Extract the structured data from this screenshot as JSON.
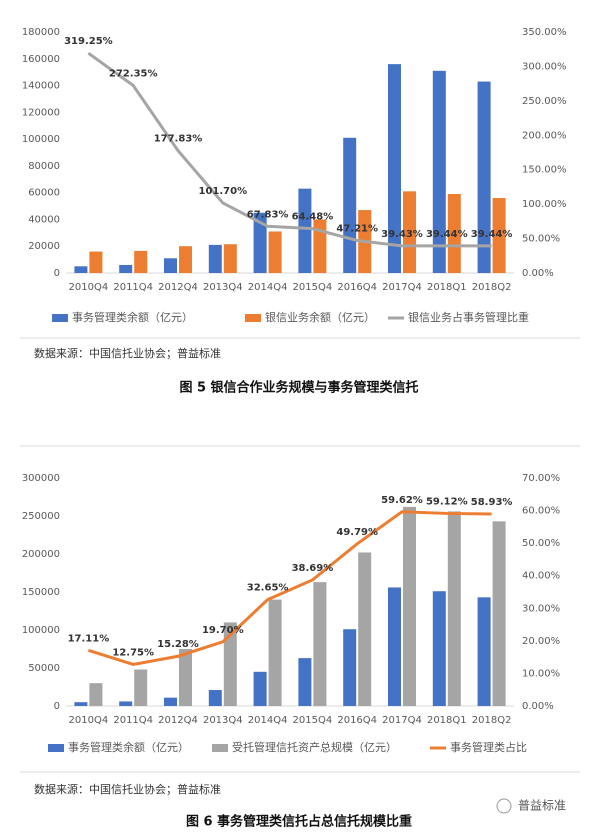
{
  "chart_data": [
    {
      "type": "bar-line",
      "categories": [
        "2010Q4",
        "2011Q4",
        "2012Q4",
        "2013Q4",
        "2014Q4",
        "2015Q4",
        "2016Q4",
        "2017Q4",
        "2018Q1",
        "2018Q2"
      ],
      "series": [
        {
          "name": "事务管理类余额（亿元）",
          "color": "#4472c4",
          "values": [
            5000,
            6000,
            11000,
            21000,
            45000,
            63000,
            101000,
            156000,
            151000,
            143000
          ]
        },
        {
          "name": "银信业务余额（亿元）",
          "color": "#ed7d31",
          "values": [
            16000,
            16500,
            20000,
            21500,
            31000,
            40000,
            47000,
            61000,
            59000,
            56000
          ]
        },
        {
          "name": "银信业务占事务管理比重",
          "color": "#a5a5a5",
          "axis": "y2",
          "values": [
            319.25,
            272.35,
            177.83,
            101.7,
            67.83,
            64.48,
            47.21,
            39.43,
            39.44,
            39.44
          ],
          "value_labels": [
            "319.25%",
            "272.35%",
            "177.83%",
            "101.70%",
            "67.83%",
            "64.48%",
            "47.21%",
            "39.43%",
            "39.44%",
            "39.44%"
          ]
        }
      ],
      "ylim": [
        0,
        180000
      ],
      "yticks": [
        0,
        20000,
        40000,
        60000,
        80000,
        100000,
        120000,
        140000,
        160000,
        180000
      ],
      "y2lim": [
        0,
        350
      ],
      "y2ticks": [
        {
          "value": 0,
          "label": "0.00%"
        },
        {
          "value": 50,
          "label": "50.00%"
        },
        {
          "value": 100,
          "label": "100.00%"
        },
        {
          "value": 150,
          "label": "150.00%"
        },
        {
          "value": 200,
          "label": "200.00%"
        },
        {
          "value": 250,
          "label": "250.00%"
        },
        {
          "value": 300,
          "label": "300.00%"
        },
        {
          "value": 350,
          "label": "350.00%"
        }
      ],
      "source": "数据来源：中国信托业协会；普益标准",
      "caption": "图 5 银信合作业务规模与事务管理类信托"
    },
    {
      "type": "bar-line",
      "categories": [
        "2010Q4",
        "2011Q4",
        "2012Q4",
        "2013Q4",
        "2014Q4",
        "2015Q4",
        "2016Q4",
        "2017Q4",
        "2018Q1",
        "2018Q2"
      ],
      "series": [
        {
          "name": "事务管理类余额（亿元）",
          "color": "#4472c4",
          "values": [
            5000,
            6000,
            11000,
            21000,
            45000,
            63000,
            101000,
            156000,
            151000,
            143000
          ]
        },
        {
          "name": "受托管理信托资产总规模（亿元）",
          "color": "#a5a5a5",
          "values": [
            30000,
            48000,
            75000,
            110000,
            140000,
            163000,
            202000,
            262000,
            256000,
            243000
          ]
        },
        {
          "name": "事务管理类占比",
          "color": "#ed7d31",
          "axis": "y2",
          "values": [
            17.11,
            12.75,
            15.28,
            19.7,
            32.65,
            38.69,
            49.79,
            59.62,
            59.12,
            58.93
          ],
          "value_labels": [
            "17.11%",
            "12.75%",
            "15.28%",
            "19.70%",
            "32.65%",
            "38.69%",
            "49.79%",
            "59.62%",
            "59.12%",
            "58.93%"
          ]
        }
      ],
      "ylim": [
        0,
        300000
      ],
      "yticks": [
        0,
        50000,
        100000,
        150000,
        200000,
        250000,
        300000
      ],
      "y2lim": [
        0,
        70
      ],
      "y2ticks": [
        {
          "value": 0,
          "label": "0.00%"
        },
        {
          "value": 10,
          "label": "10.00%"
        },
        {
          "value": 20,
          "label": "20.00%"
        },
        {
          "value": 30,
          "label": "30.00%"
        },
        {
          "value": 40,
          "label": "40.00%"
        },
        {
          "value": 50,
          "label": "50.00%"
        },
        {
          "value": 60,
          "label": "60.00%"
        },
        {
          "value": 70,
          "label": "70.00%"
        }
      ],
      "source": "数据来源：中国信托业协会；普益标准",
      "caption": "图 6 事务管理类信托占总信托规模比重"
    }
  ],
  "watermark": "普益标准"
}
